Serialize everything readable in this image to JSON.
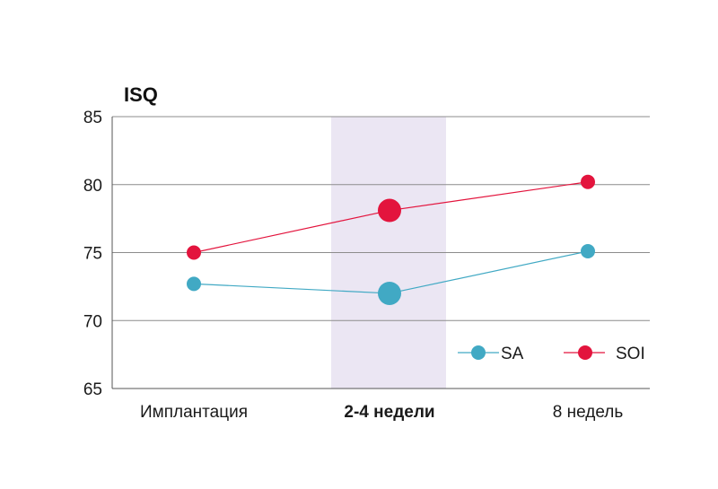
{
  "chart_data": {
    "type": "line",
    "ylabel": "ISQ",
    "categories": [
      "Имплантация",
      "2-4 недели",
      "8 недель"
    ],
    "highlight_category": "2-4 недели",
    "ylim": [
      65,
      85
    ],
    "yticks": [
      "85",
      "80",
      "75",
      "70",
      "65"
    ],
    "grid": true,
    "legend_position": "bottom-right",
    "series": [
      {
        "name": "SA",
        "color": "#41a9c4",
        "values": [
          72.7,
          72.0,
          75.1
        ]
      },
      {
        "name": "SOI",
        "color": "#e3143d",
        "values": [
          75.0,
          78.1,
          80.2
        ]
      }
    ],
    "highlight_color": "#ebe6f3"
  }
}
